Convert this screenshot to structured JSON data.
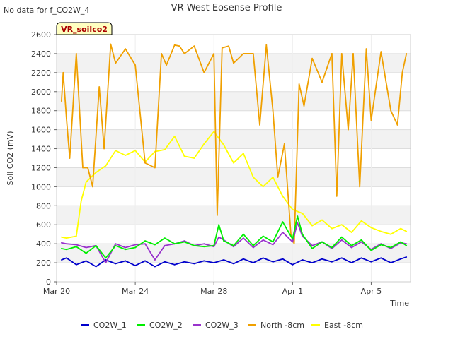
{
  "notice": "No data for f_CO2W_4",
  "site_badge": "VR_soilco2",
  "chart_data": {
    "type": "line",
    "title": "VR West Eosense Profile",
    "xlabel": "Time",
    "ylabel": "Soil CO2 (mV)",
    "ylim": [
      0,
      2600
    ],
    "yticks": [
      0,
      200,
      400,
      600,
      800,
      1000,
      1200,
      1400,
      1600,
      1800,
      2000,
      2200,
      2400,
      2600
    ],
    "xlim": [
      "2024-03-20",
      "2024-04-07"
    ],
    "xticks": [
      {
        "x": "2024-03-20",
        "label": "Mar 20"
      },
      {
        "x": "2024-03-24",
        "label": "Mar 24"
      },
      {
        "x": "2024-03-28",
        "label": "Mar 28"
      },
      {
        "x": "2024-04-01",
        "label": "Apr 1"
      },
      {
        "x": "2024-04-05",
        "label": "Apr 5"
      }
    ],
    "grid": true,
    "legend_position": "bottom",
    "series": [
      {
        "name": "CO2W_1",
        "color": "#0000cc",
        "x": [
          "2024-03-20T06:00",
          "2024-03-20T12:00",
          "2024-03-21T00:00",
          "2024-03-21T12:00",
          "2024-03-22T00:00",
          "2024-03-22T12:00",
          "2024-03-23T00:00",
          "2024-03-23T12:00",
          "2024-03-24T00:00",
          "2024-03-24T12:00",
          "2024-03-25T00:00",
          "2024-03-25T12:00",
          "2024-03-26T00:00",
          "2024-03-26T12:00",
          "2024-03-27T00:00",
          "2024-03-27T12:00",
          "2024-03-28T00:00",
          "2024-03-28T12:00",
          "2024-03-29T00:00",
          "2024-03-29T12:00",
          "2024-03-30T00:00",
          "2024-03-30T12:00",
          "2024-03-31T00:00",
          "2024-03-31T12:00",
          "2024-04-01T00:00",
          "2024-04-01T12:00",
          "2024-04-02T00:00",
          "2024-04-02T12:00",
          "2024-04-03T00:00",
          "2024-04-03T12:00",
          "2024-04-04T00:00",
          "2024-04-04T12:00",
          "2024-04-05T00:00",
          "2024-04-05T12:00",
          "2024-04-06T00:00",
          "2024-04-06T12:00",
          "2024-04-06T19:00"
        ],
        "y": [
          230,
          250,
          180,
          220,
          160,
          230,
          190,
          220,
          170,
          220,
          160,
          210,
          180,
          210,
          190,
          220,
          200,
          230,
          190,
          240,
          200,
          250,
          210,
          240,
          180,
          230,
          200,
          240,
          210,
          250,
          200,
          250,
          210,
          250,
          200,
          240,
          260
        ]
      },
      {
        "name": "CO2W_2",
        "color": "#00ee00",
        "x": [
          "2024-03-20T06:00",
          "2024-03-20T12:00",
          "2024-03-21T00:00",
          "2024-03-21T12:00",
          "2024-03-22T00:00",
          "2024-03-22T12:00",
          "2024-03-23T00:00",
          "2024-03-23T12:00",
          "2024-03-24T00:00",
          "2024-03-24T12:00",
          "2024-03-25T00:00",
          "2024-03-25T12:00",
          "2024-03-26T00:00",
          "2024-03-26T12:00",
          "2024-03-27T00:00",
          "2024-03-27T12:00",
          "2024-03-28T00:00",
          "2024-03-28T06:00",
          "2024-03-28T12:00",
          "2024-03-29T00:00",
          "2024-03-29T12:00",
          "2024-03-30T00:00",
          "2024-03-30T12:00",
          "2024-03-31T00:00",
          "2024-03-31T12:00",
          "2024-04-01T00:00",
          "2024-04-01T06:00",
          "2024-04-01T12:00",
          "2024-04-02T00:00",
          "2024-04-02T12:00",
          "2024-04-03T00:00",
          "2024-04-03T12:00",
          "2024-04-04T00:00",
          "2024-04-04T12:00",
          "2024-04-05T00:00",
          "2024-04-05T12:00",
          "2024-04-06T00:00",
          "2024-04-06T12:00",
          "2024-04-06T19:00"
        ],
        "y": [
          350,
          340,
          370,
          300,
          380,
          250,
          380,
          340,
          360,
          430,
          390,
          460,
          400,
          420,
          380,
          370,
          380,
          600,
          430,
          380,
          500,
          380,
          480,
          420,
          630,
          450,
          690,
          500,
          350,
          420,
          360,
          470,
          380,
          440,
          330,
          390,
          360,
          420,
          380
        ]
      },
      {
        "name": "CO2W_3",
        "color": "#9933cc",
        "x": [
          "2024-03-20T06:00",
          "2024-03-20T12:00",
          "2024-03-21T00:00",
          "2024-03-21T12:00",
          "2024-03-22T00:00",
          "2024-03-22T12:00",
          "2024-03-23T00:00",
          "2024-03-23T12:00",
          "2024-03-24T00:00",
          "2024-03-24T12:00",
          "2024-03-25T00:00",
          "2024-03-25T12:00",
          "2024-03-26T00:00",
          "2024-03-26T12:00",
          "2024-03-27T00:00",
          "2024-03-27T12:00",
          "2024-03-28T00:00",
          "2024-03-28T06:00",
          "2024-03-28T12:00",
          "2024-03-29T00:00",
          "2024-03-29T12:00",
          "2024-03-30T00:00",
          "2024-03-30T12:00",
          "2024-03-31T00:00",
          "2024-03-31T12:00",
          "2024-04-01T00:00",
          "2024-04-01T06:00",
          "2024-04-01T12:00",
          "2024-04-02T00:00",
          "2024-04-02T12:00",
          "2024-04-03T00:00",
          "2024-04-03T12:00",
          "2024-04-04T00:00",
          "2024-04-04T12:00",
          "2024-04-05T00:00",
          "2024-04-05T12:00",
          "2024-04-06T00:00",
          "2024-04-06T12:00",
          "2024-04-06T19:00"
        ],
        "y": [
          410,
          400,
          390,
          360,
          380,
          200,
          400,
          360,
          390,
          400,
          230,
          380,
          400,
          430,
          380,
          400,
          370,
          470,
          440,
          370,
          460,
          360,
          440,
          390,
          520,
          420,
          620,
          480,
          380,
          420,
          350,
          440,
          360,
          420,
          340,
          400,
          350,
          410,
          400
        ]
      },
      {
        "name": "North -8cm",
        "color": "#f0a000",
        "x": [
          "2024-03-20T06:00",
          "2024-03-20T08:00",
          "2024-03-20T12:00",
          "2024-03-20T16:00",
          "2024-03-21T00:00",
          "2024-03-21T04:00",
          "2024-03-21T08:00",
          "2024-03-21T14:00",
          "2024-03-21T20:00",
          "2024-03-22T04:00",
          "2024-03-22T10:00",
          "2024-03-22T18:00",
          "2024-03-23T00:00",
          "2024-03-23T12:00",
          "2024-03-24T00:00",
          "2024-03-24T12:00",
          "2024-03-25T00:00",
          "2024-03-25T08:00",
          "2024-03-25T14:00",
          "2024-03-26T00:00",
          "2024-03-26T06:00",
          "2024-03-26T12:00",
          "2024-03-27T00:00",
          "2024-03-27T12:00",
          "2024-03-28T00:00",
          "2024-03-28T04:00",
          "2024-03-28T10:00",
          "2024-03-28T18:00",
          "2024-03-29T00:00",
          "2024-03-29T12:00",
          "2024-03-30T00:00",
          "2024-03-30T08:00",
          "2024-03-30T16:00",
          "2024-03-31T00:00",
          "2024-03-31T06:00",
          "2024-03-31T14:00",
          "2024-03-31T22:00",
          "2024-04-01T02:00",
          "2024-04-01T08:00",
          "2024-04-01T14:00",
          "2024-04-02T00:00",
          "2024-04-02T12:00",
          "2024-04-03T00:00",
          "2024-04-03T06:00",
          "2024-04-03T12:00",
          "2024-04-03T20:00",
          "2024-04-04T02:00",
          "2024-04-04T10:00",
          "2024-04-04T18:00",
          "2024-04-05T00:00",
          "2024-04-05T12:00",
          "2024-04-06T00:00",
          "2024-04-06T08:00",
          "2024-04-06T14:00",
          "2024-04-06T19:00"
        ],
        "y": [
          1900,
          2200,
          1720,
          1300,
          2400,
          1800,
          1200,
          1200,
          1000,
          2050,
          1400,
          2500,
          2300,
          2450,
          2280,
          1250,
          1200,
          2400,
          2280,
          2490,
          2480,
          2400,
          2480,
          2200,
          2400,
          700,
          2460,
          2480,
          2300,
          2400,
          2400,
          1650,
          2490,
          1800,
          1100,
          1450,
          500,
          400,
          2080,
          1850,
          2350,
          2100,
          2400,
          900,
          2400,
          1600,
          2400,
          1000,
          2450,
          1700,
          2420,
          1800,
          1650,
          2200,
          2400
        ]
      },
      {
        "name": "East -8cm",
        "color": "#ffff00",
        "x": [
          "2024-03-20T06:00",
          "2024-03-20T12:00",
          "2024-03-21T00:00",
          "2024-03-21T06:00",
          "2024-03-21T12:00",
          "2024-03-22T00:00",
          "2024-03-22T12:00",
          "2024-03-23T00:00",
          "2024-03-23T12:00",
          "2024-03-24T00:00",
          "2024-03-24T12:00",
          "2024-03-25T00:00",
          "2024-03-25T12:00",
          "2024-03-26T00:00",
          "2024-03-26T12:00",
          "2024-03-27T00:00",
          "2024-03-27T12:00",
          "2024-03-28T00:00",
          "2024-03-28T12:00",
          "2024-03-29T00:00",
          "2024-03-29T12:00",
          "2024-03-30T00:00",
          "2024-03-30T12:00",
          "2024-03-31T00:00",
          "2024-03-31T12:00",
          "2024-04-01T00:00",
          "2024-04-01T12:00",
          "2024-04-02T00:00",
          "2024-04-02T12:00",
          "2024-04-03T00:00",
          "2024-04-03T12:00",
          "2024-04-04T00:00",
          "2024-04-04T12:00",
          "2024-04-05T00:00",
          "2024-04-05T12:00",
          "2024-04-06T00:00",
          "2024-04-06T12:00",
          "2024-04-06T19:00"
        ],
        "y": [
          470,
          460,
          480,
          850,
          1050,
          1150,
          1220,
          1380,
          1330,
          1380,
          1260,
          1370,
          1390,
          1530,
          1320,
          1300,
          1450,
          1580,
          1440,
          1250,
          1350,
          1100,
          1000,
          1100,
          900,
          760,
          720,
          590,
          650,
          560,
          600,
          520,
          640,
          570,
          530,
          500,
          560,
          530
        ]
      }
    ]
  }
}
